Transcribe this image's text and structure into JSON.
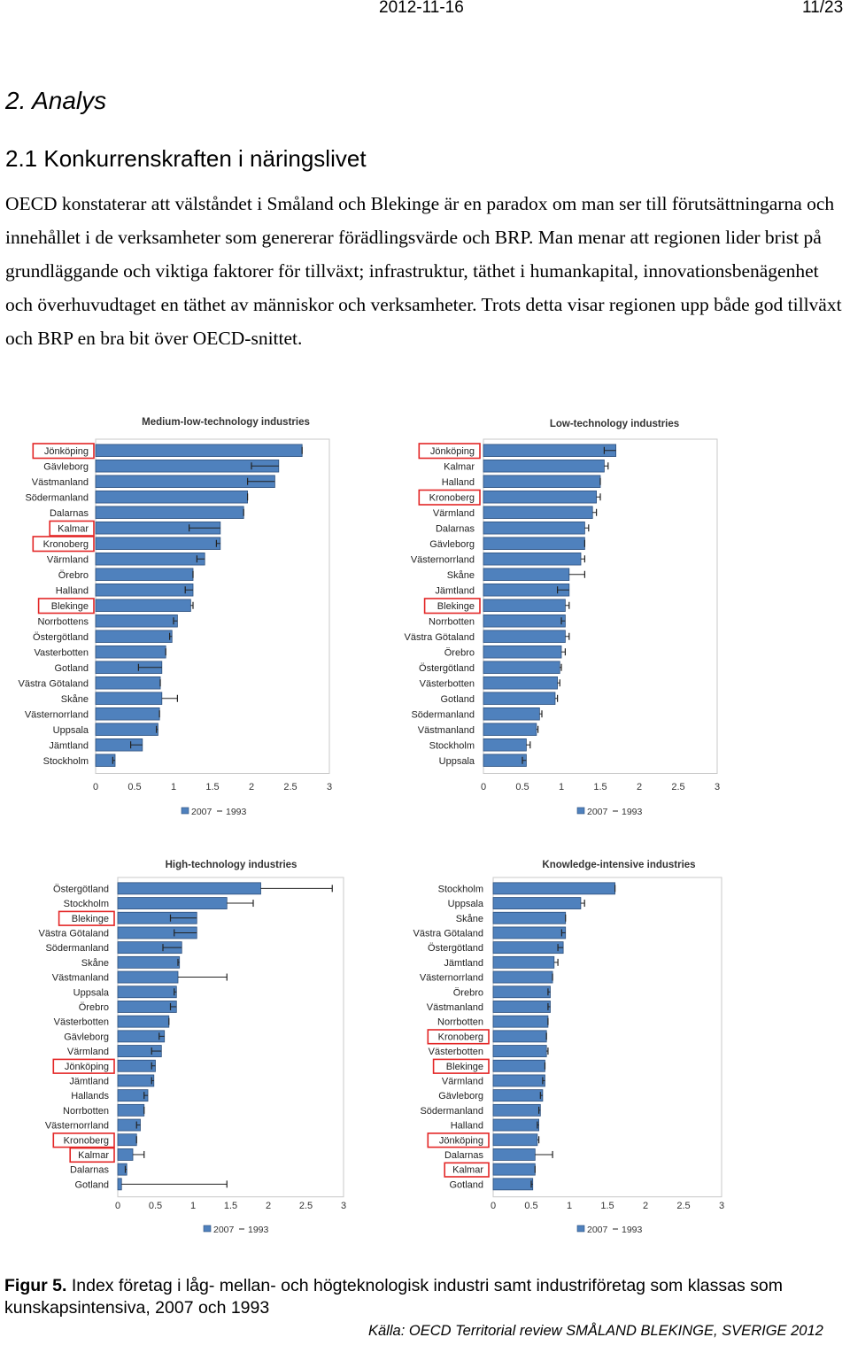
{
  "header": {
    "date": "2012-11-16",
    "page": "11/23"
  },
  "heading": "2. Analys",
  "subheading": "2.1 Konkurrenskraften i näringslivet",
  "paragraph": "OECD konstaterar att välståndet i Småland och Blekinge är en paradox om man ser till förutsättningarna och innehållet i de verksamheter som genererar förädlingsvärde och BRP. Man menar att regionen lider brist på grundläggande och viktiga faktorer för tillväxt; infrastruktur, täthet i humankapital, innovationsbenägenhet och överhuvudtaget en täthet av människor och verksamheter. Trots detta visar regionen upp både god tillväxt och BRP en bra bit över OECD-snittet.",
  "caption": {
    "label": "Figur 5.",
    "text": " Index företag i låg- mellan- och högteknologisk industri samt industriföretag som klassas som kunskapsintensiva, 2007 och 1993"
  },
  "source": "Källa: OECD Territorial review SMÅLAND BLEKINGE, SVERIGE 2012",
  "colors": {
    "bar_fill": "#4f81bd",
    "bar_stroke": "#2c4f7c",
    "highlight": "#e32626",
    "grid": "#c8c8c8"
  },
  "chart_data": [
    {
      "type": "bar",
      "orientation": "horizontal",
      "title": "Medium-low-technology industries",
      "legend": [
        "2007",
        "1993"
      ],
      "xlim": [
        0,
        3
      ],
      "xticks": [
        "0",
        "0.5",
        "1",
        "1.5",
        "2",
        "2.5",
        "3"
      ],
      "categories": [
        "Jönköping",
        "Gävleborg",
        "Västmanland",
        "Södermanland",
        "Dalarnas",
        "Kalmar",
        "Kronoberg",
        "Värmland",
        "Örebro",
        "Halland",
        "Blekinge",
        "Norrbottens",
        "Östergötland",
        "Vasterbotten",
        "Gotland",
        "Västra Götaland",
        "Skåne",
        "Västernorrland",
        "Uppsala",
        "Jämtland",
        "Stockholm"
      ],
      "highlighted": [
        "Jönköping",
        "Kalmar",
        "Kronoberg",
        "Blekinge"
      ],
      "series": [
        {
          "name": "2007",
          "values": [
            2.65,
            2.35,
            2.3,
            1.95,
            1.9,
            1.6,
            1.6,
            1.4,
            1.25,
            1.25,
            1.22,
            1.05,
            0.98,
            0.9,
            0.85,
            0.83,
            0.85,
            0.82,
            0.8,
            0.6,
            0.25
          ]
        },
        {
          "name": "1993",
          "values": [
            2.65,
            2.0,
            1.95,
            1.95,
            1.9,
            1.2,
            1.55,
            1.3,
            1.25,
            1.15,
            1.25,
            1.0,
            0.95,
            0.9,
            0.55,
            0.83,
            1.05,
            0.82,
            0.78,
            0.45,
            0.22
          ]
        }
      ]
    },
    {
      "type": "bar",
      "orientation": "horizontal",
      "title": "Low-technology industries",
      "legend": [
        "2007",
        "1993"
      ],
      "xlim": [
        0,
        3
      ],
      "xticks": [
        "0",
        "0.5",
        "1",
        "1.5",
        "2",
        "2.5",
        "3"
      ],
      "categories": [
        "Jönköping",
        "Kalmar",
        "Halland",
        "Kronoberg",
        "Värmland",
        "Dalarnas",
        "Gävleborg",
        "Västernorrland",
        "Skåne",
        "Jämtland",
        "Blekinge",
        "Norrbotten",
        "Västra Götaland",
        "Örebro",
        "Östergötland",
        "Västerbotten",
        "Gotland",
        "Södermanland",
        "Västmanland",
        "Stockholm",
        "Uppsala"
      ],
      "highlighted": [
        "Jönköping",
        "Kronoberg",
        "Blekinge"
      ],
      "series": [
        {
          "name": "2007",
          "values": [
            1.7,
            1.55,
            1.5,
            1.45,
            1.4,
            1.3,
            1.3,
            1.25,
            1.1,
            1.1,
            1.05,
            1.05,
            1.05,
            1.0,
            0.98,
            0.95,
            0.92,
            0.72,
            0.68,
            0.55,
            0.55
          ]
        },
        {
          "name": "1993",
          "values": [
            1.55,
            1.6,
            1.5,
            1.5,
            1.45,
            1.35,
            1.3,
            1.3,
            1.3,
            0.95,
            1.1,
            1.0,
            1.1,
            1.05,
            1.0,
            0.98,
            0.95,
            0.75,
            0.7,
            0.6,
            0.5
          ]
        }
      ]
    },
    {
      "type": "bar",
      "orientation": "horizontal",
      "title": "High-technology industries",
      "legend": [
        "2007",
        "1993"
      ],
      "xlim": [
        0,
        3
      ],
      "xticks": [
        "0",
        "0.5",
        "1",
        "1.5",
        "2",
        "2.5",
        "3"
      ],
      "categories": [
        "Östergötland",
        "Stockholm",
        "Blekinge",
        "Västra Götaland",
        "Södermanland",
        "Skåne",
        "Västmanland",
        "Uppsala",
        "Örebro",
        "Västerbotten",
        "Gävleborg",
        "Värmland",
        "Jönköping",
        "Jämtland",
        "Hallands",
        "Norrbotten",
        "Västernorrland",
        "Kronoberg",
        "Kalmar",
        "Dalarnas",
        "Gotland"
      ],
      "highlighted": [
        "Blekinge",
        "Jönköping",
        "Kronoberg",
        "Kalmar"
      ],
      "series": [
        {
          "name": "2007",
          "values": [
            1.9,
            1.45,
            1.05,
            1.05,
            0.85,
            0.82,
            0.8,
            0.78,
            0.78,
            0.68,
            0.62,
            0.58,
            0.5,
            0.48,
            0.4,
            0.35,
            0.3,
            0.25,
            0.2,
            0.12,
            0.05
          ]
        },
        {
          "name": "1993",
          "values": [
            2.85,
            1.8,
            0.7,
            0.75,
            0.6,
            0.8,
            1.45,
            0.75,
            0.7,
            0.68,
            0.55,
            0.45,
            0.45,
            0.45,
            0.35,
            0.35,
            0.25,
            0.25,
            0.35,
            0.1,
            1.45
          ]
        }
      ]
    },
    {
      "type": "bar",
      "orientation": "horizontal",
      "title": "Knowledge-intensive industries",
      "legend": [
        "2007",
        "1993"
      ],
      "xlim": [
        0,
        3
      ],
      "xticks": [
        "0",
        "0.5",
        "1",
        "1.5",
        "2",
        "2.5",
        "3"
      ],
      "categories": [
        "Stockholm",
        "Uppsala",
        "Skåne",
        "Västra Götaland",
        "Östergötland",
        "Jämtland",
        "Västernorrland",
        "Örebro",
        "Västmanland",
        "Norrbotten",
        "Kronoberg",
        "Västerbotten",
        "Blekinge",
        "Värmland",
        "Gävleborg",
        "Södermanland",
        "Halland",
        "Jönköping",
        "Dalarnas",
        "Kalmar",
        "Gotland"
      ],
      "highlighted": [
        "Kronoberg",
        "Blekinge",
        "Jönköping",
        "Kalmar"
      ],
      "series": [
        {
          "name": "2007",
          "values": [
            1.6,
            1.15,
            0.95,
            0.95,
            0.92,
            0.8,
            0.78,
            0.75,
            0.75,
            0.72,
            0.7,
            0.7,
            0.68,
            0.68,
            0.65,
            0.62,
            0.6,
            0.58,
            0.55,
            0.55,
            0.52
          ]
        },
        {
          "name": "1993",
          "values": [
            1.6,
            1.2,
            0.95,
            0.9,
            0.85,
            0.85,
            0.78,
            0.72,
            0.72,
            0.72,
            0.7,
            0.72,
            0.68,
            0.65,
            0.62,
            0.6,
            0.58,
            0.6,
            0.78,
            0.55,
            0.5
          ]
        }
      ]
    }
  ]
}
